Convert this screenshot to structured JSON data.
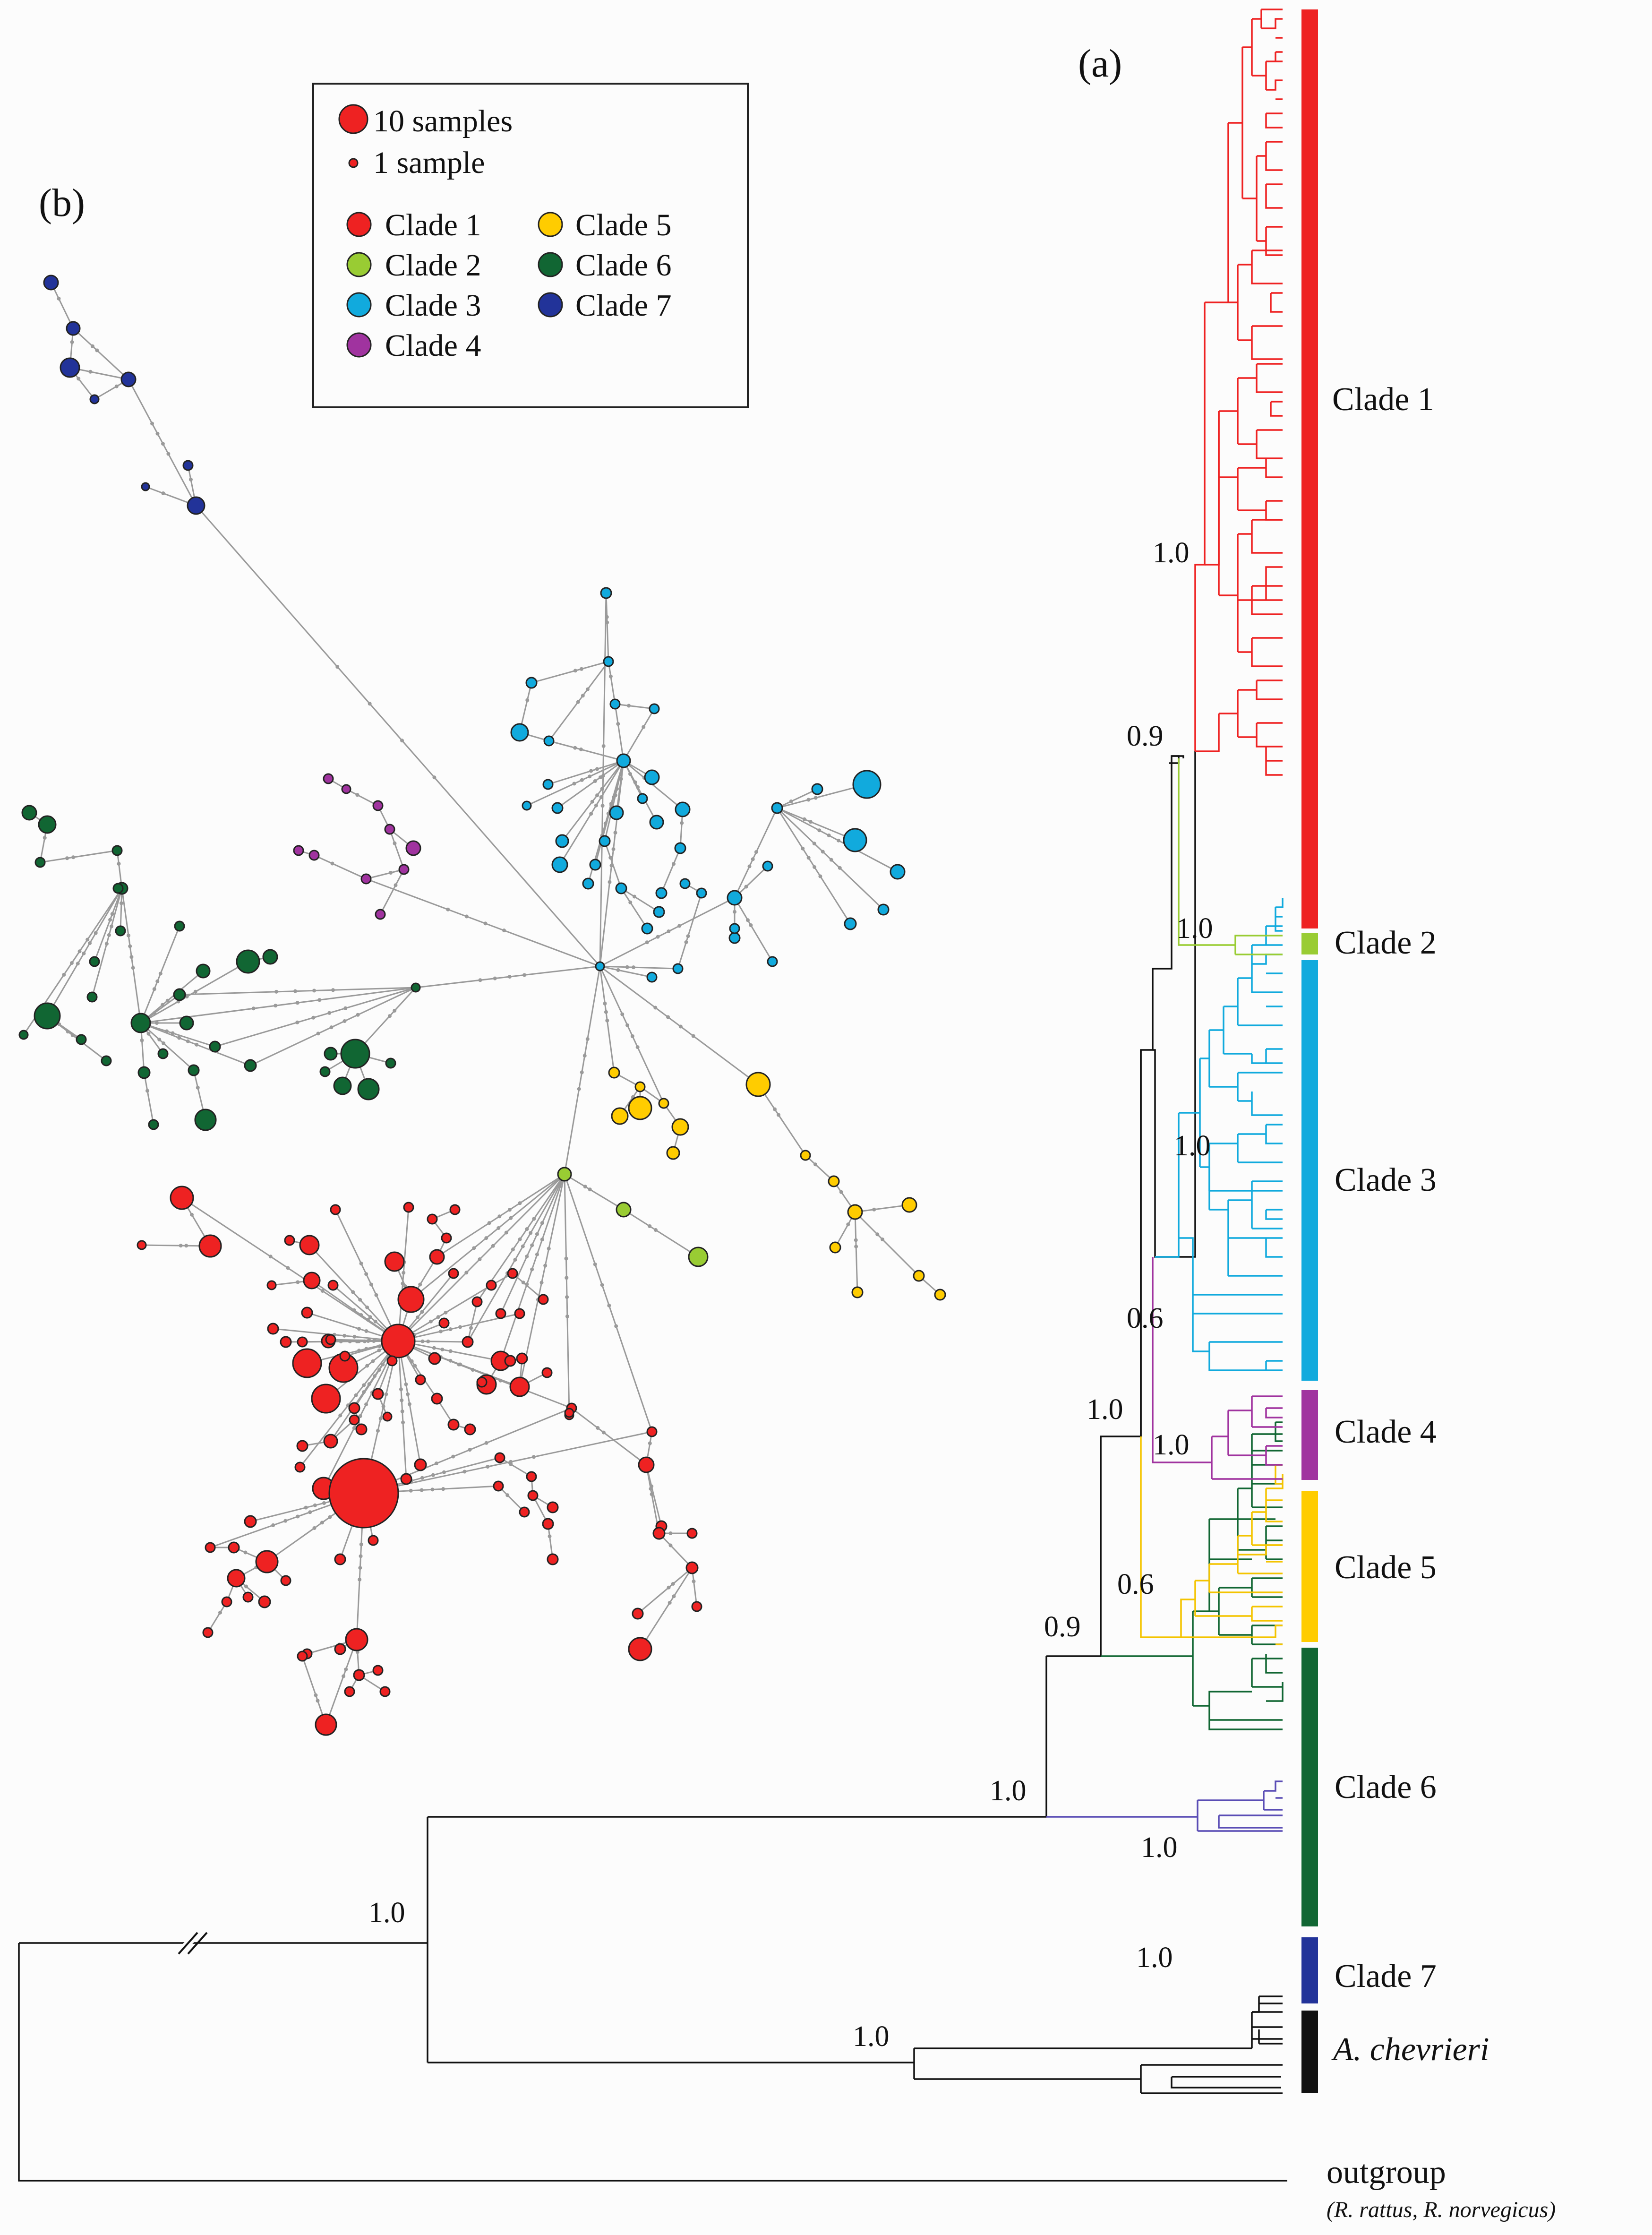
{
  "panel_labels": {
    "a": "(a)",
    "b": "(b)"
  },
  "legend": {
    "size_large": "10 samples",
    "size_small": "1 sample",
    "clades": [
      {
        "label": "Clade 1",
        "color": "#ee2222"
      },
      {
        "label": "Clade 2",
        "color": "#99cc33"
      },
      {
        "label": "Clade 3",
        "color": "#11aadd"
      },
      {
        "label": "Clade 4",
        "color": "#a0339f"
      },
      {
        "label": "Clade 5",
        "color": "#ffcc00"
      },
      {
        "label": "Clade 6",
        "color": "#116633"
      },
      {
        "label": "Clade 7",
        "color": "#223399"
      }
    ]
  },
  "tree": {
    "clade_labels": [
      "Clade 1",
      "Clade 2",
      "Clade 3",
      "Clade 4",
      "Clade 5",
      "Clade 6",
      "Clade 7"
    ],
    "species_label": "A. chevrieri",
    "outgroup_label": "outgroup",
    "outgroup_species": "(R. rattus, R. norvegicus)",
    "support": {
      "clade1": "1.0",
      "clade1_2": "0.9",
      "clade2": "1.0",
      "clade3": "1.0",
      "clade3_4": "0.6",
      "clade4": "1.0",
      "clade1_4": "1.0",
      "clade5": "0.6",
      "clade1_5": "0.9",
      "clade6": "1.0",
      "clade1_6": "1.0",
      "clade7": "1.0",
      "ingroup": "1.0",
      "chevrieri": "1.0"
    }
  },
  "colors": {
    "branch": "#111111",
    "network_edge": "#999999",
    "node_stroke": "#222222"
  }
}
